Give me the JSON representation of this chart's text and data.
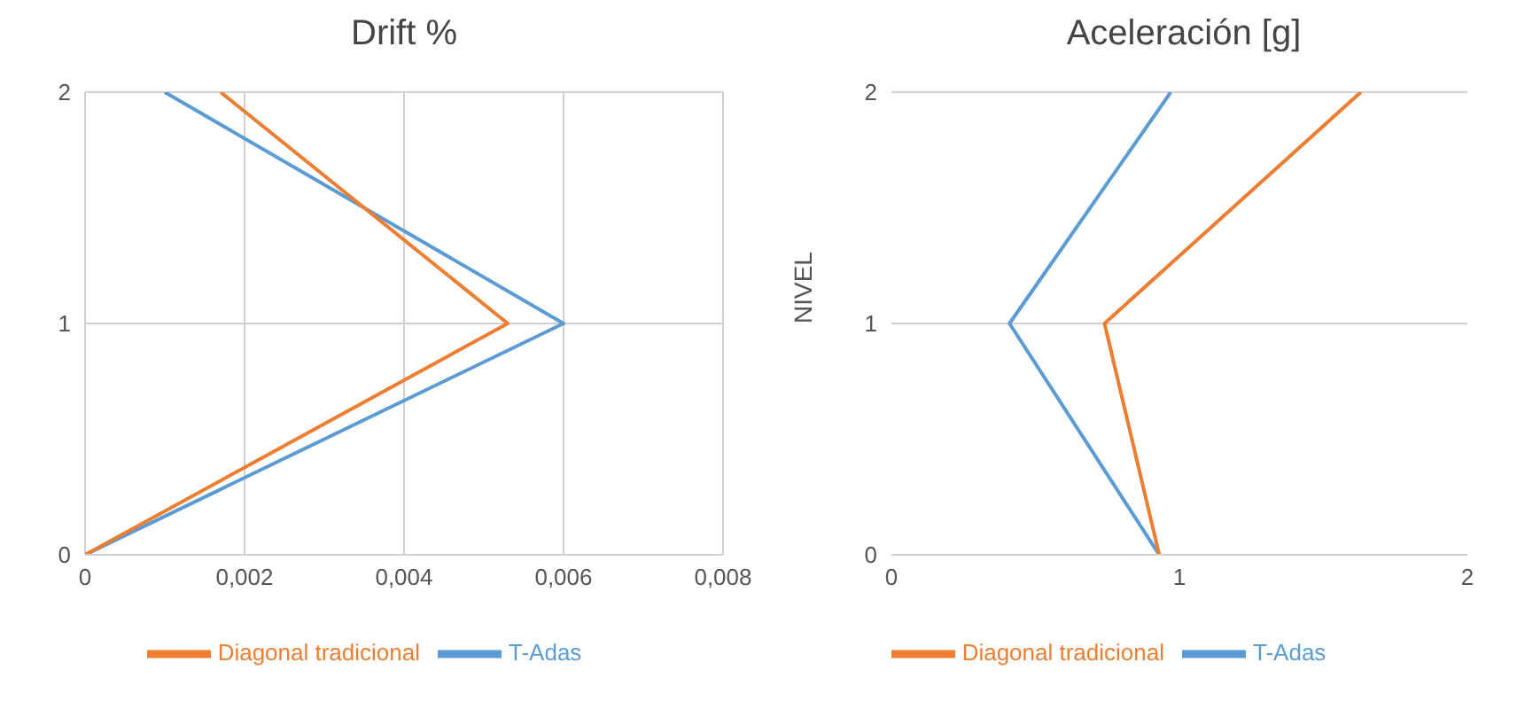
{
  "chart_data": [
    {
      "type": "line",
      "title": "Drift %",
      "xlim": [
        0,
        0.008
      ],
      "xticks": [
        0,
        {
          "value": 0.002,
          "label": "0,002"
        },
        {
          "value": 0.004,
          "label": "0,004"
        },
        {
          "value": 0.006,
          "label": "0,006"
        },
        {
          "value": 0.008,
          "label": "0,008"
        }
      ],
      "ylim": [
        0,
        2
      ],
      "yticks": [
        0,
        1,
        2
      ],
      "grid": true,
      "legend": "bottom",
      "marker": "none",
      "series": [
        {
          "name": "T-Adas",
          "color": "#5b9bd5",
          "x": [
            0,
            0.006,
            0.001
          ],
          "values": [
            0,
            1,
            2
          ]
        },
        {
          "name": "Diagonal tradicional",
          "color": "#ed7d31",
          "x": [
            0,
            0.0053,
            0.0017
          ],
          "values": [
            0,
            1,
            2
          ]
        }
      ]
    },
    {
      "type": "line",
      "title": "Aceleración [g]",
      "ylabel": "NIVEL",
      "xlim": [
        0,
        2
      ],
      "xticks": [
        0,
        1,
        2
      ],
      "ylim": [
        0,
        2
      ],
      "yticks": [
        0,
        1,
        2
      ],
      "grid": "y",
      "legend": "bottom",
      "marker": "none",
      "series": [
        {
          "name": "T-Adas",
          "color": "#5b9bd5",
          "x": [
            0.93,
            0.41,
            0.97
          ],
          "values": [
            0,
            1,
            2
          ]
        },
        {
          "name": "Diagonal tradicional",
          "color": "#ed7d31",
          "x": [
            0.93,
            0.74,
            1.63
          ],
          "values": [
            0,
            1,
            2
          ]
        }
      ]
    }
  ]
}
